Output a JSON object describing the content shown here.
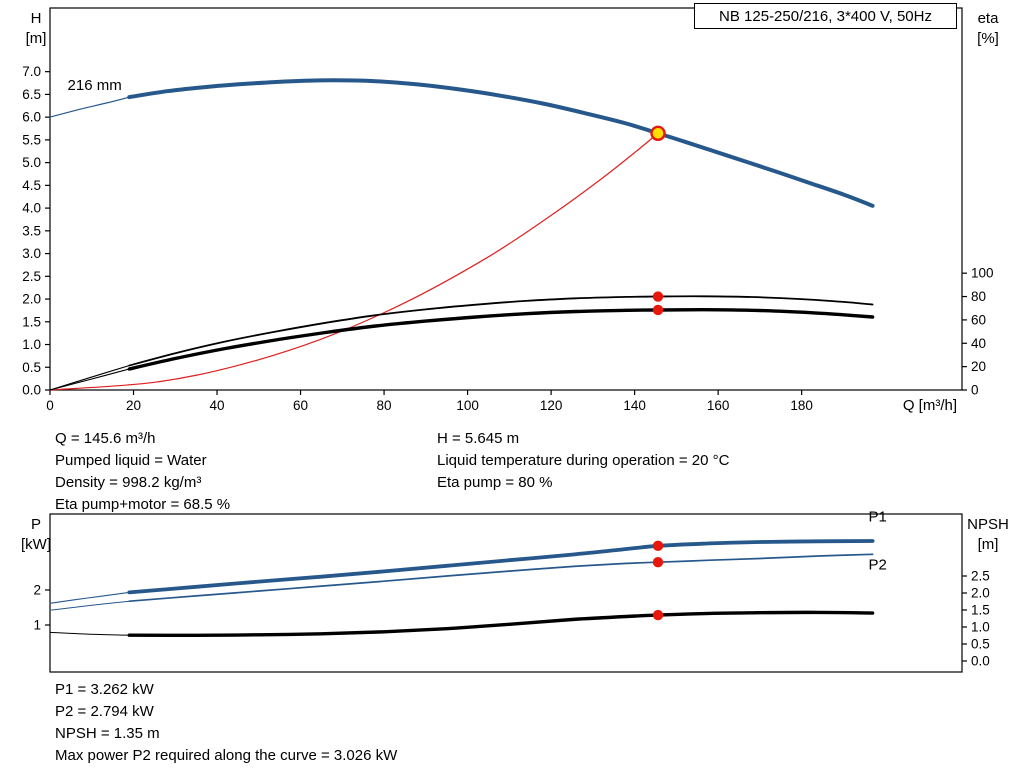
{
  "title_box": {
    "text": "NB 125-250/216, 3*400 V, 50Hz"
  },
  "info_top": {
    "left": [
      "Q = 145.6 m³/h",
      "Pumped liquid = Water",
      "Density = 998.2 kg/m³",
      "Eta pump+motor = 68.5 %"
    ],
    "right": [
      "H = 5.645 m",
      "Liquid temperature during operation = 20 °C",
      "Eta pump = 80 %"
    ]
  },
  "info_bottom": [
    "P1 = 3.262 kW",
    "P2 = 2.794 kW",
    "NPSH = 1.35 m",
    "Max power P2 required along the curve = 3.026 kW"
  ],
  "colors": {
    "curve_blue": "#27588c",
    "marker_red": "#e8170c",
    "duty_yellow": "#ffdf00",
    "black": "#000000",
    "system_red": "#e02020"
  },
  "chart_data": [
    {
      "type": "line",
      "name": "hq-eta-chart",
      "title": "NB 125-250/216, 3*400 V, 50Hz",
      "xlabel": "Q [m³/h]",
      "xlim": [
        0,
        218.4
      ],
      "xticks": {
        "values": [
          0,
          20,
          40,
          60,
          80,
          100,
          120,
          140,
          160,
          180
        ],
        "labels": [
          "0",
          "20",
          "40",
          "60",
          "80",
          "100",
          "120",
          "140",
          "160",
          "180"
        ]
      },
      "left_axis": {
        "label_lines": [
          "H",
          "[m]"
        ],
        "lim": [
          0,
          8.4
        ],
        "ticks": [
          0,
          0.5,
          1.0,
          1.5,
          2.0,
          2.5,
          3.0,
          3.5,
          4.0,
          4.5,
          5.0,
          5.5,
          6.0,
          6.5,
          7.0
        ],
        "labels": [
          "0.0",
          "0.5",
          "1.0",
          "1.5",
          "2.0",
          "2.5",
          "3.0",
          "3.5",
          "4.0",
          "4.5",
          "5.0",
          "5.5",
          "6.0",
          "6.5",
          "7.0"
        ]
      },
      "right_axis": {
        "label_lines": [
          "eta",
          "[%]"
        ],
        "lim": [
          0,
          327
        ],
        "ticks": [
          0,
          20,
          40,
          60,
          80,
          100
        ],
        "labels": [
          "0",
          "20",
          "40",
          "60",
          "80",
          "100"
        ]
      },
      "series": [
        {
          "name": "head-curve-min-flow-extension",
          "axis": "left",
          "color": "#27588c",
          "width": 1.2,
          "points": [
            [
              0,
              6.0
            ],
            [
              7,
              6.17
            ],
            [
              13,
              6.3
            ],
            [
              19,
              6.44
            ]
          ]
        },
        {
          "name": "head-curve-216mm",
          "axis": "left",
          "color": "#27588c",
          "width": 4,
          "points": [
            [
              19,
              6.44
            ],
            [
              28,
              6.57
            ],
            [
              38,
              6.67
            ],
            [
              48,
              6.74
            ],
            [
              58,
              6.79
            ],
            [
              68,
              6.81
            ],
            [
              78,
              6.79
            ],
            [
              88,
              6.72
            ],
            [
              98,
              6.61
            ],
            [
              108,
              6.47
            ],
            [
              118,
              6.3
            ],
            [
              128,
              6.09
            ],
            [
              138,
              5.86
            ],
            [
              145.6,
              5.645
            ],
            [
              152,
              5.46
            ],
            [
              162,
              5.16
            ],
            [
              172,
              4.86
            ],
            [
              182,
              4.55
            ],
            [
              190,
              4.3
            ],
            [
              197,
              4.05
            ]
          ]
        },
        {
          "name": "system-curve",
          "axis": "left",
          "color": "#e02020",
          "width": 1.2,
          "points": [
            [
              0,
              0
            ],
            [
              25,
              0.17
            ],
            [
              45,
              0.54
            ],
            [
              65,
              1.12
            ],
            [
              85,
              1.92
            ],
            [
              105,
              2.93
            ],
            [
              120,
              3.84
            ],
            [
              132,
              4.64
            ],
            [
              140,
              5.22
            ],
            [
              145.6,
              5.645
            ]
          ]
        },
        {
          "name": "eta-pump-extension",
          "axis": "right",
          "color": "#000000",
          "width": 1.1,
          "points": [
            [
              0,
              0
            ],
            [
              9,
              10
            ],
            [
              19,
              21
            ]
          ]
        },
        {
          "name": "eta-pump-curve",
          "axis": "right",
          "color": "#000000",
          "width": 1.8,
          "points": [
            [
              19,
              21
            ],
            [
              30,
              31.5
            ],
            [
              42,
              41.5
            ],
            [
              54,
              50
            ],
            [
              66,
              57.5
            ],
            [
              78,
              64
            ],
            [
              90,
              69
            ],
            [
              102,
              73
            ],
            [
              114,
              76.3
            ],
            [
              126,
              78.5
            ],
            [
              138,
              79.7
            ],
            [
              145.6,
              80
            ],
            [
              156,
              80.2
            ],
            [
              168,
              79.6
            ],
            [
              180,
              77.8
            ],
            [
              190,
              75.4
            ],
            [
              197,
              73.2
            ]
          ]
        },
        {
          "name": "eta-pump-motor-extension",
          "axis": "right",
          "color": "#000000",
          "width": 1.1,
          "points": [
            [
              0,
              0
            ],
            [
              9,
              8.5
            ],
            [
              19,
              18
            ]
          ]
        },
        {
          "name": "eta-pump-motor-curve",
          "axis": "right",
          "color": "#000000",
          "width": 3.4,
          "points": [
            [
              19,
              18
            ],
            [
              30,
              27
            ],
            [
              42,
              35.5
            ],
            [
              54,
              42.8
            ],
            [
              66,
              49.2
            ],
            [
              78,
              54.8
            ],
            [
              90,
              59
            ],
            [
              102,
              62.5
            ],
            [
              114,
              65.3
            ],
            [
              126,
              67.2
            ],
            [
              138,
              68.2
            ],
            [
              145.6,
              68.5
            ],
            [
              156,
              68.7
            ],
            [
              168,
              68.2
            ],
            [
              180,
              66.6
            ],
            [
              190,
              64.4
            ],
            [
              197,
              62.5
            ]
          ]
        }
      ],
      "markers": [
        {
          "type": "duty",
          "name": "duty-point-marker",
          "axis": "left",
          "x": 145.6,
          "y": 5.645
        },
        {
          "type": "dot",
          "name": "eta-pump-duty-dot",
          "axis": "right",
          "x": 145.6,
          "y": 80
        },
        {
          "type": "dot",
          "name": "eta-pump-motor-duty-dot",
          "axis": "right",
          "x": 145.6,
          "y": 68.5
        }
      ],
      "annotations": [
        {
          "text": "216 mm",
          "x": 4.2,
          "y": 6.6,
          "anchor": "start",
          "color": "#000000",
          "name": "impeller-diameter-label"
        }
      ]
    },
    {
      "type": "line",
      "name": "power-npsh-chart",
      "xlabel": "",
      "xlim": [
        0,
        218.4
      ],
      "xticks": {
        "values": [],
        "labels": []
      },
      "left_axis": {
        "label_lines": [
          "P",
          "[kW]"
        ],
        "lim": [
          -0.343,
          4.171
        ],
        "ticks": [
          1,
          2
        ],
        "labels": [
          "1",
          "2"
        ]
      },
      "right_axis": {
        "label_lines": [
          "NPSH",
          "[m]"
        ],
        "lim": [
          -0.324,
          4.324
        ],
        "ticks": [
          0,
          0.5,
          1.0,
          1.5,
          2.0,
          2.5
        ],
        "labels": [
          "0.0",
          "0.5",
          "1.0",
          "1.5",
          "2.0",
          "2.5"
        ]
      },
      "series": [
        {
          "name": "p1-extension",
          "axis": "left",
          "color": "#27588c",
          "width": 1.1,
          "points": [
            [
              0,
              1.62
            ],
            [
              9,
              1.77
            ],
            [
              19,
              1.93
            ]
          ]
        },
        {
          "name": "p1-curve",
          "axis": "left",
          "color": "#27588c",
          "width": 3.8,
          "points": [
            [
              19,
              1.93
            ],
            [
              35,
              2.09
            ],
            [
              50,
              2.24
            ],
            [
              65,
              2.38
            ],
            [
              80,
              2.53
            ],
            [
              95,
              2.69
            ],
            [
              110,
              2.85
            ],
            [
              125,
              3.01
            ],
            [
              138,
              3.17
            ],
            [
              145.6,
              3.262
            ],
            [
              158,
              3.33
            ],
            [
              170,
              3.37
            ],
            [
              184,
              3.39
            ],
            [
              197,
              3.4
            ]
          ]
        },
        {
          "name": "p2-extension",
          "axis": "left",
          "color": "#27588c",
          "width": 1.0,
          "points": [
            [
              0,
              1.42
            ],
            [
              9,
              1.55
            ],
            [
              19,
              1.68
            ]
          ]
        },
        {
          "name": "p2-curve",
          "axis": "left",
          "color": "#27588c",
          "width": 1.7,
          "points": [
            [
              19,
              1.68
            ],
            [
              35,
              1.83
            ],
            [
              50,
              1.97
            ],
            [
              65,
              2.11
            ],
            [
              80,
              2.25
            ],
            [
              95,
              2.4
            ],
            [
              110,
              2.54
            ],
            [
              125,
              2.67
            ],
            [
              138,
              2.76
            ],
            [
              145.6,
              2.794
            ],
            [
              158,
              2.85
            ],
            [
              170,
              2.9
            ],
            [
              184,
              2.97
            ],
            [
              197,
              3.02
            ]
          ]
        },
        {
          "name": "npsh-extension",
          "axis": "right",
          "color": "#000000",
          "width": 1.0,
          "points": [
            [
              0,
              0.84
            ],
            [
              9,
              0.79
            ],
            [
              19,
              0.76
            ]
          ]
        },
        {
          "name": "npsh-curve",
          "axis": "right",
          "color": "#000000",
          "width": 3.4,
          "points": [
            [
              19,
              0.76
            ],
            [
              35,
              0.755
            ],
            [
              50,
              0.77
            ],
            [
              65,
              0.8
            ],
            [
              80,
              0.86
            ],
            [
              95,
              0.95
            ],
            [
              110,
              1.08
            ],
            [
              125,
              1.22
            ],
            [
              138,
              1.31
            ],
            [
              145.6,
              1.35
            ],
            [
              158,
              1.4
            ],
            [
              170,
              1.42
            ],
            [
              184,
              1.43
            ],
            [
              197,
              1.41
            ]
          ]
        }
      ],
      "markers": [
        {
          "type": "dot",
          "name": "p1-duty-dot",
          "axis": "left",
          "x": 145.6,
          "y": 3.262
        },
        {
          "type": "dot",
          "name": "p2-duty-dot",
          "axis": "left",
          "x": 145.6,
          "y": 2.794
        },
        {
          "type": "dot",
          "name": "npsh-duty-dot",
          "axis": "right",
          "x": 145.6,
          "y": 1.35
        }
      ],
      "annotations": [
        {
          "text": "P1",
          "x": 196,
          "y": 3.95,
          "anchor": "start",
          "color": "#27588c",
          "name": "p1-curve-label"
        },
        {
          "text": "P2",
          "x": 196,
          "y": 2.58,
          "anchor": "start",
          "color": "#27588c",
          "name": "p2-curve-label"
        }
      ]
    }
  ]
}
